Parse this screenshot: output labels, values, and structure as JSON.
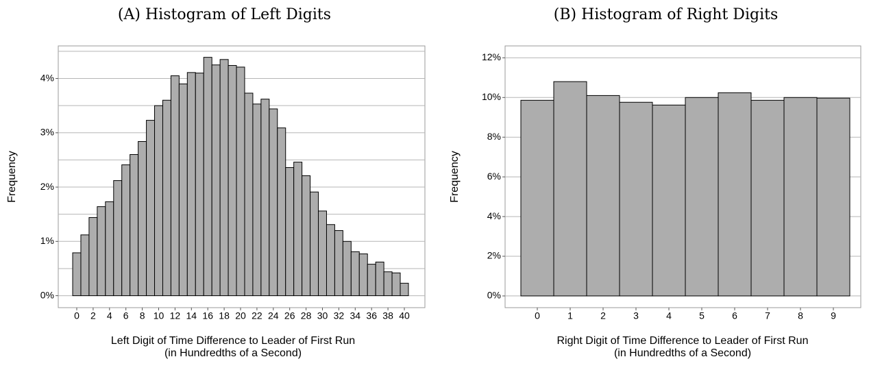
{
  "chart_data": [
    {
      "type": "bar",
      "title": "(A) Histogram of Left Digits",
      "ylabel": "Frequency",
      "xlabel": [
        "Left Digit of Time Difference to Leader of First Run",
        "(in Hundredths of a Second)"
      ],
      "categories": [
        "0",
        null,
        "2",
        null,
        "4",
        null,
        "6",
        null,
        "8",
        null,
        "10",
        null,
        "12",
        null,
        "14",
        null,
        "16",
        null,
        "18",
        null,
        "20",
        null,
        "22",
        null,
        "24",
        null,
        "26",
        null,
        "28",
        null,
        "30",
        null,
        "32",
        null,
        "34",
        null,
        "36",
        null,
        "38",
        null,
        "40"
      ],
      "values": [
        0.79,
        1.12,
        1.44,
        1.64,
        1.73,
        2.12,
        2.41,
        2.6,
        2.84,
        3.23,
        3.5,
        3.6,
        4.05,
        3.9,
        4.11,
        4.1,
        4.39,
        4.25,
        4.35,
        4.24,
        4.21,
        3.73,
        3.53,
        3.62,
        3.44,
        3.09,
        2.36,
        2.46,
        2.21,
        1.91,
        1.56,
        1.31,
        1.2,
        1.0,
        0.81,
        0.77,
        0.58,
        0.62,
        0.44,
        0.42,
        0.23
      ],
      "color": "#adadad",
      "edgecolor": "#000000",
      "ylim": [
        -0.22,
        4.6
      ],
      "yticks": [
        {
          "value": 0,
          "label": "0%"
        },
        {
          "value": 1,
          "label": "1%"
        },
        {
          "value": 2,
          "label": "2%"
        },
        {
          "value": 3,
          "label": "3%"
        },
        {
          "value": 4,
          "label": "4%"
        }
      ],
      "minor_yticks": [
        0.5,
        1.5,
        2.5,
        3.5,
        4.5
      ],
      "grid": true
    },
    {
      "type": "bar",
      "title": "(B) Histogram of Right Digits",
      "ylabel": "Frequency",
      "xlabel": [
        "Right Digit of Time Difference to Leader of First Run",
        "(in Hundredths of a Second)"
      ],
      "categories": [
        "0",
        "1",
        "2",
        "3",
        "4",
        "5",
        "6",
        "7",
        "8",
        "9"
      ],
      "values": [
        9.86,
        10.8,
        10.1,
        9.76,
        9.62,
        10.0,
        10.24,
        9.86,
        10.0,
        9.97
      ],
      "color": "#adadad",
      "edgecolor": "#000000",
      "ylim": [
        -0.59,
        12.6
      ],
      "yticks": [
        {
          "value": 0,
          "label": "0%"
        },
        {
          "value": 2,
          "label": "2%"
        },
        {
          "value": 4,
          "label": "4%"
        },
        {
          "value": 6,
          "label": "6%"
        },
        {
          "value": 8,
          "label": "8%"
        },
        {
          "value": 10,
          "label": "10%"
        },
        {
          "value": 12,
          "label": "12%"
        }
      ],
      "minor_yticks": [],
      "grid": true
    }
  ]
}
